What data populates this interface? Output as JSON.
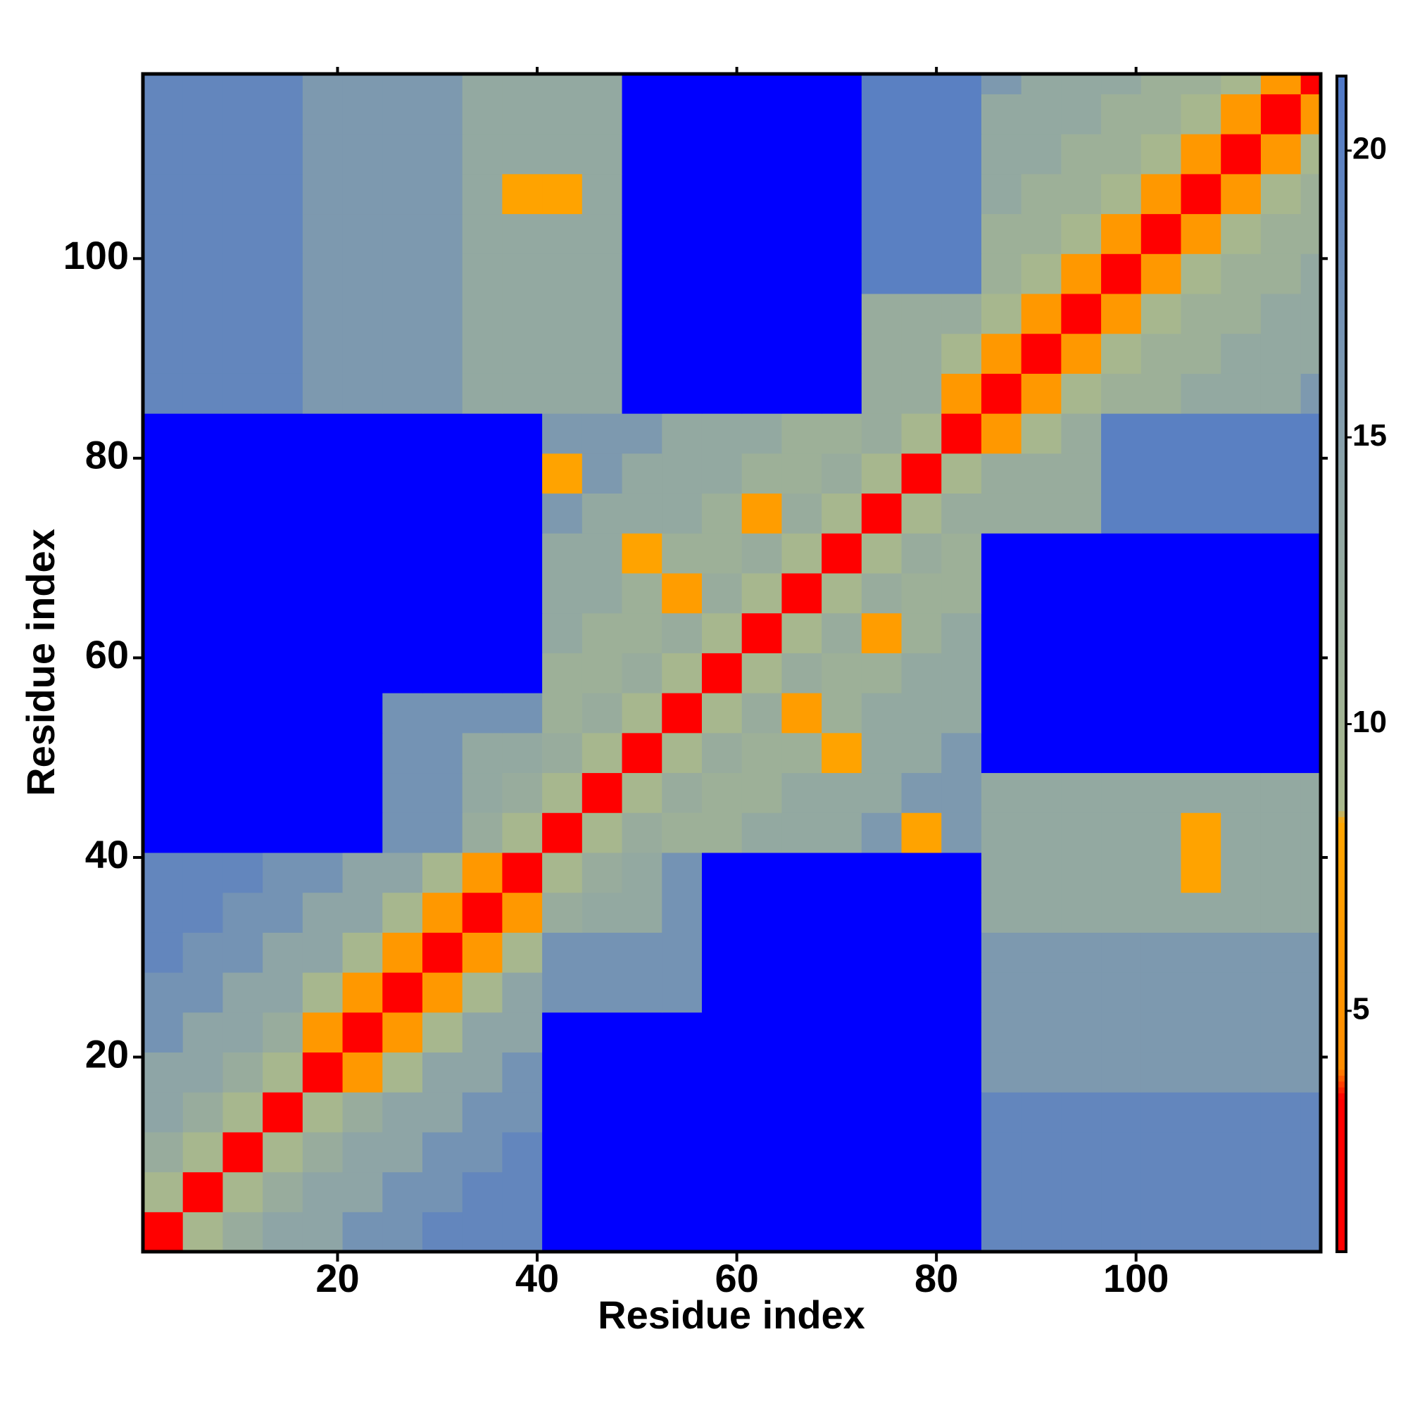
{
  "chart_data": {
    "type": "heatmap",
    "x_label": "Residue index",
    "y_label": "Residue index",
    "xlim": [
      0.5,
      118.5
    ],
    "ylim": [
      0.5,
      118.5
    ],
    "xticks": [
      20,
      40,
      60,
      80,
      100
    ],
    "yticks": [
      20,
      40,
      60,
      80,
      100
    ],
    "xbins": [
      0.5,
      4.5,
      8.5,
      12.5,
      16.5,
      20.5,
      24.5,
      28.5,
      32.5,
      36.5,
      40.5,
      44.5,
      48.5,
      52.5,
      56.5,
      60.5,
      64.5,
      68.5,
      72.5,
      76.5,
      80.5,
      84.5,
      88.5,
      92.5,
      96.5,
      100.5,
      104.5,
      108.5,
      112.5,
      116.5,
      118.5
    ],
    "ybins": [
      0.5,
      4.5,
      8.5,
      12.5,
      16.5,
      20.5,
      24.5,
      28.5,
      32.5,
      36.5,
      40.5,
      44.5,
      48.5,
      52.5,
      56.5,
      60.5,
      64.5,
      68.5,
      72.5,
      76.5,
      80.5,
      84.5,
      88.5,
      92.5,
      96.5,
      100.5,
      104.5,
      108.5,
      112.5,
      116.5,
      118.5
    ],
    "zlim": [
      0.8,
      21.3
    ],
    "zticks": [
      5,
      10,
      15,
      20
    ],
    "colorscale": [
      [
        0.8,
        "#ff0000"
      ],
      [
        3.5,
        "#ff0000"
      ],
      [
        4,
        "#ff8c00"
      ],
      [
        8.3,
        "#ffa500"
      ],
      [
        8.5,
        "#a9b98c"
      ],
      [
        14,
        "#8ea5a6"
      ],
      [
        21.3,
        "#4f78c8"
      ]
    ],
    "over_color": "#0000ff",
    "z": [
      [
        2,
        9,
        12,
        14,
        14,
        17,
        17,
        19,
        19,
        19,
        22,
        22,
        22,
        22,
        22,
        22,
        22,
        22,
        22,
        22,
        22,
        19,
        19,
        19,
        19,
        19,
        19,
        19,
        19,
        19
      ],
      [
        9,
        2,
        9,
        12,
        14,
        14,
        17,
        17,
        19,
        19,
        22,
        22,
        22,
        22,
        22,
        22,
        22,
        22,
        22,
        22,
        22,
        19,
        19,
        19,
        19,
        19,
        19,
        19,
        19,
        19
      ],
      [
        12,
        9,
        2,
        9,
        12,
        14,
        14,
        17,
        17,
        19,
        22,
        22,
        22,
        22,
        22,
        22,
        22,
        22,
        22,
        22,
        22,
        19,
        19,
        19,
        19,
        19,
        19,
        19,
        19,
        19
      ],
      [
        14,
        12,
        9,
        2,
        9,
        12,
        14,
        14,
        17,
        17,
        22,
        22,
        22,
        22,
        22,
        22,
        22,
        22,
        22,
        22,
        22,
        19,
        19,
        19,
        19,
        19,
        19,
        19,
        19,
        19
      ],
      [
        14,
        14,
        12,
        9,
        2,
        6,
        9,
        14,
        14,
        17,
        22,
        22,
        22,
        22,
        22,
        22,
        22,
        22,
        22,
        22,
        22,
        16,
        16,
        16,
        16,
        16,
        16,
        16,
        16,
        16
      ],
      [
        17,
        14,
        14,
        12,
        6,
        2,
        6,
        9,
        14,
        14,
        22,
        22,
        22,
        22,
        22,
        22,
        22,
        22,
        22,
        22,
        22,
        16,
        16,
        16,
        16,
        16,
        16,
        16,
        16,
        16
      ],
      [
        17,
        17,
        14,
        14,
        9,
        6,
        2,
        6,
        9,
        14,
        17,
        17,
        17,
        17,
        22,
        22,
        22,
        22,
        22,
        22,
        22,
        16,
        16,
        16,
        16,
        16,
        16,
        16,
        16,
        16
      ],
      [
        19,
        17,
        17,
        14,
        14,
        9,
        6,
        2,
        6,
        9,
        17,
        17,
        17,
        17,
        22,
        22,
        22,
        22,
        22,
        22,
        22,
        16,
        16,
        16,
        16,
        16,
        16,
        16,
        16,
        16
      ],
      [
        19,
        19,
        17,
        17,
        14,
        14,
        9,
        6,
        2,
        6,
        12,
        13,
        13,
        17,
        22,
        22,
        22,
        22,
        22,
        22,
        22,
        13,
        13,
        13,
        13,
        13,
        13,
        13,
        13,
        13
      ],
      [
        19,
        19,
        19,
        17,
        17,
        14,
        14,
        9,
        6,
        2,
        9,
        12,
        13,
        17,
        22,
        22,
        22,
        22,
        22,
        22,
        22,
        13,
        13,
        13,
        13,
        13,
        8,
        13,
        13,
        13
      ],
      [
        22,
        22,
        22,
        22,
        22,
        22,
        17,
        17,
        12,
        9,
        2,
        9,
        12,
        11,
        11,
        13,
        13,
        13,
        16,
        8,
        16,
        13,
        13,
        13,
        13,
        13,
        8,
        13,
        13,
        13
      ],
      [
        22,
        22,
        22,
        22,
        22,
        22,
        17,
        17,
        13,
        12,
        9,
        2,
        9,
        12,
        11,
        11,
        13,
        13,
        13,
        16,
        16,
        13,
        13,
        13,
        13,
        13,
        13,
        13,
        13,
        13
      ],
      [
        22,
        22,
        22,
        22,
        22,
        22,
        17,
        17,
        13,
        13,
        12,
        9,
        2,
        9,
        12,
        11,
        11,
        8,
        13,
        13,
        16,
        22,
        22,
        22,
        22,
        22,
        22,
        22,
        22,
        22
      ],
      [
        22,
        22,
        22,
        22,
        22,
        22,
        17,
        17,
        17,
        17,
        11,
        12,
        9,
        2,
        9,
        12,
        7,
        11,
        13,
        13,
        13,
        22,
        22,
        22,
        22,
        22,
        22,
        22,
        22,
        22
      ],
      [
        22,
        22,
        22,
        22,
        22,
        22,
        22,
        22,
        22,
        22,
        11,
        11,
        12,
        9,
        2,
        9,
        12,
        11,
        11,
        13,
        13,
        22,
        22,
        22,
        22,
        22,
        22,
        22,
        22,
        22
      ],
      [
        22,
        22,
        22,
        22,
        22,
        22,
        22,
        22,
        22,
        22,
        13,
        11,
        11,
        12,
        9,
        2,
        9,
        12,
        7,
        11,
        13,
        22,
        22,
        22,
        22,
        22,
        22,
        22,
        22,
        22
      ],
      [
        22,
        22,
        22,
        22,
        22,
        22,
        22,
        22,
        22,
        22,
        13,
        13,
        11,
        7,
        12,
        9,
        2,
        9,
        12,
        11,
        11,
        22,
        22,
        22,
        22,
        22,
        22,
        22,
        22,
        22
      ],
      [
        22,
        22,
        22,
        22,
        22,
        22,
        22,
        22,
        22,
        22,
        13,
        13,
        8,
        11,
        11,
        12,
        9,
        2,
        9,
        12,
        11,
        22,
        22,
        22,
        22,
        22,
        22,
        22,
        22,
        22
      ],
      [
        22,
        22,
        22,
        22,
        22,
        22,
        22,
        22,
        22,
        22,
        16,
        13,
        13,
        13,
        11,
        7,
        12,
        9,
        2,
        9,
        12,
        12,
        12,
        12,
        20,
        20,
        20,
        20,
        20,
        20
      ],
      [
        22,
        22,
        22,
        22,
        22,
        22,
        22,
        22,
        22,
        22,
        8,
        16,
        13,
        13,
        13,
        11,
        11,
        12,
        9,
        2,
        9,
        12,
        12,
        12,
        20,
        20,
        20,
        20,
        20,
        20
      ],
      [
        22,
        22,
        22,
        22,
        22,
        22,
        22,
        22,
        22,
        22,
        16,
        16,
        16,
        13,
        13,
        13,
        11,
        11,
        12,
        9,
        2,
        6,
        9,
        12,
        20,
        20,
        20,
        20,
        20,
        20
      ],
      [
        19,
        19,
        19,
        19,
        16,
        16,
        16,
        16,
        13,
        13,
        13,
        13,
        22,
        22,
        22,
        22,
        22,
        22,
        12,
        12,
        6,
        2,
        6,
        9,
        11,
        11,
        13,
        13,
        13,
        16
      ],
      [
        19,
        19,
        19,
        19,
        16,
        16,
        16,
        16,
        13,
        13,
        13,
        13,
        22,
        22,
        22,
        22,
        22,
        22,
        12,
        12,
        9,
        6,
        2,
        6,
        9,
        11,
        11,
        13,
        13,
        13
      ],
      [
        19,
        19,
        19,
        19,
        16,
        16,
        16,
        16,
        13,
        13,
        13,
        13,
        22,
        22,
        22,
        22,
        22,
        22,
        12,
        12,
        12,
        9,
        6,
        2,
        6,
        9,
        11,
        11,
        13,
        13
      ],
      [
        19,
        19,
        19,
        19,
        16,
        16,
        16,
        16,
        13,
        13,
        13,
        13,
        22,
        22,
        22,
        22,
        22,
        22,
        20,
        20,
        20,
        11,
        9,
        6,
        2,
        6,
        9,
        11,
        11,
        13
      ],
      [
        19,
        19,
        19,
        19,
        16,
        16,
        16,
        16,
        13,
        13,
        13,
        13,
        22,
        22,
        22,
        22,
        22,
        22,
        20,
        20,
        20,
        11,
        11,
        9,
        6,
        2,
        6,
        9,
        11,
        11
      ],
      [
        19,
        19,
        19,
        19,
        16,
        16,
        16,
        16,
        13,
        8,
        8,
        13,
        22,
        22,
        22,
        22,
        22,
        22,
        20,
        20,
        20,
        13,
        11,
        11,
        9,
        6,
        2,
        6,
        9,
        11
      ],
      [
        19,
        19,
        19,
        19,
        16,
        16,
        16,
        16,
        13,
        13,
        13,
        13,
        22,
        22,
        22,
        22,
        22,
        22,
        20,
        20,
        20,
        13,
        13,
        11,
        11,
        9,
        6,
        2,
        6,
        9
      ],
      [
        19,
        19,
        19,
        19,
        16,
        16,
        16,
        16,
        13,
        13,
        13,
        13,
        22,
        22,
        22,
        22,
        22,
        22,
        20,
        20,
        20,
        13,
        13,
        13,
        11,
        11,
        9,
        6,
        2,
        6
      ],
      [
        19,
        19,
        19,
        19,
        16,
        16,
        16,
        16,
        13,
        13,
        13,
        13,
        22,
        22,
        22,
        22,
        22,
        22,
        20,
        20,
        20,
        16,
        13,
        13,
        13,
        11,
        11,
        9,
        6,
        2
      ]
    ]
  }
}
